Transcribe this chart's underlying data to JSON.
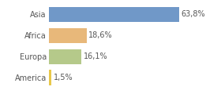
{
  "categories": [
    "America",
    "Europa",
    "Africa",
    "Asia"
  ],
  "values": [
    1.5,
    16.1,
    18.6,
    63.8
  ],
  "labels": [
    "1,5%",
    "16,1%",
    "18,6%",
    "63,8%"
  ],
  "bar_colors": [
    "#e8c84a",
    "#b5c98a",
    "#e8b87a",
    "#7098c8"
  ],
  "background_color": "#ffffff",
  "xlim": [
    0,
    82
  ],
  "label_fontsize": 7.0,
  "category_fontsize": 7.0,
  "bar_height": 0.72
}
